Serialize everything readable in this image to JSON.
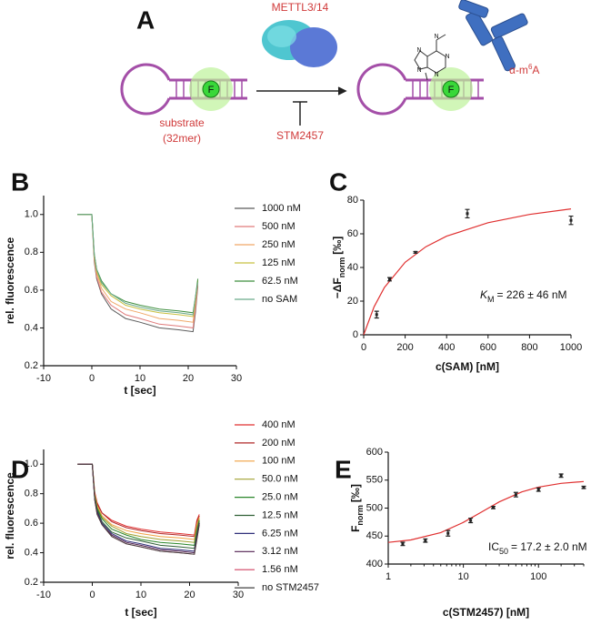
{
  "diagram": {
    "label": "A",
    "enzyme": "METTL3/14",
    "antibody": {
      "pre": "α-m",
      "sup": "6",
      "post": "A"
    },
    "substrate": [
      "substrate",
      "(32mer)"
    ],
    "inhibitor": "STM2457",
    "fluorophore": [
      "F",
      "F"
    ],
    "atoms": [
      "N",
      "N",
      "N",
      "N",
      "N"
    ]
  },
  "chart_data": [
    {
      "type": "line",
      "panel": "B",
      "xlabel": "t [sec]",
      "ylabel": "rel. fluorescence",
      "xlim": [
        -10,
        30
      ],
      "xticks": [
        -10,
        0,
        10,
        20,
        30
      ],
      "ylim": [
        0.2,
        1.1
      ],
      "yticks": [
        0.2,
        0.4,
        0.6,
        0.8,
        {
          "value": 1,
          "label": "1.0"
        }
      ],
      "x": [
        -3,
        0,
        0.5,
        1,
        2,
        4,
        7,
        10,
        14,
        18,
        21,
        21.5,
        22
      ],
      "series": [
        {
          "name": "1000 nM",
          "color": "#5a5a5a",
          "values": [
            1,
            1,
            0.75,
            0.66,
            0.58,
            0.5,
            0.45,
            0.43,
            0.4,
            0.39,
            0.38,
            0.48,
            0.62
          ]
        },
        {
          "name": "500 nM",
          "color": "#e07a7a",
          "values": [
            1,
            1,
            0.76,
            0.67,
            0.59,
            0.52,
            0.47,
            0.45,
            0.42,
            0.41,
            0.4,
            0.5,
            0.63
          ]
        },
        {
          "name": "250 nM",
          "color": "#f0a868",
          "values": [
            1,
            1,
            0.77,
            0.69,
            0.61,
            0.54,
            0.5,
            0.48,
            0.45,
            0.44,
            0.43,
            0.53,
            0.64
          ]
        },
        {
          "name": "125 nM",
          "color": "#c8c040",
          "values": [
            1,
            1,
            0.78,
            0.7,
            0.63,
            0.57,
            0.52,
            0.5,
            0.48,
            0.47,
            0.46,
            0.55,
            0.65
          ]
        },
        {
          "name": "62.5 nM",
          "color": "#3f8f3f",
          "values": [
            1,
            1,
            0.79,
            0.71,
            0.65,
            0.58,
            0.54,
            0.52,
            0.5,
            0.49,
            0.48,
            0.56,
            0.66
          ]
        },
        {
          "name": "no SAM",
          "color": "#6aaa8a",
          "values": [
            1,
            1,
            0.79,
            0.71,
            0.64,
            0.58,
            0.53,
            0.51,
            0.49,
            0.48,
            0.47,
            0.56,
            0.64
          ]
        }
      ]
    },
    {
      "type": "scatter",
      "panel": "C",
      "xlabel": "c(SAM) [nM]",
      "ylabel": {
        "pre": "−ΔF",
        "sub": "norm",
        "post": "[‰]"
      },
      "annotation": {
        "pre": "K",
        "sub": "M",
        "post": "= 226 ± 46 nM"
      },
      "xlim": [
        0,
        1000
      ],
      "xticks": [
        0,
        200,
        400,
        600,
        800,
        1000
      ],
      "ylim": [
        0,
        80
      ],
      "yticks": [
        0,
        20,
        40,
        60,
        80
      ],
      "x": [
        62.5,
        125,
        250,
        500,
        1000
      ],
      "values": [
        12,
        33,
        49,
        72,
        68
      ],
      "errors": [
        2,
        1,
        0.5,
        2.5,
        2.5
      ],
      "color": "#222222",
      "fit": {
        "color": "#e03030",
        "x": [
          0,
          50,
          100,
          200,
          300,
          400,
          600,
          800,
          1000
        ],
        "values": [
          0,
          16.6,
          28.1,
          43.1,
          52.3,
          58.6,
          66.6,
          71.5,
          74.8
        ]
      }
    },
    {
      "type": "line",
      "panel": "D",
      "xlabel": "t [sec]",
      "ylabel": "rel. fluorescence",
      "xlim": [
        -10,
        30
      ],
      "xticks": [
        -10,
        0,
        10,
        20,
        30
      ],
      "ylim": [
        0.2,
        1.1
      ],
      "yticks": [
        0.2,
        0.4,
        0.6,
        0.8,
        {
          "value": 1,
          "label": "1.0"
        }
      ],
      "x": [
        -3,
        0,
        0.5,
        1,
        2,
        4,
        7,
        10,
        14,
        18,
        21,
        21.5,
        22
      ],
      "series": [
        {
          "name": "400 nM",
          "color": "#e03030",
          "values": [
            1,
            1,
            0.81,
            0.74,
            0.67,
            0.62,
            0.58,
            0.56,
            0.54,
            0.53,
            0.52,
            0.62,
            0.66
          ]
        },
        {
          "name": "200 nM",
          "color": "#b02828",
          "values": [
            1,
            1,
            0.8,
            0.73,
            0.67,
            0.61,
            0.57,
            0.55,
            0.53,
            0.52,
            0.51,
            0.61,
            0.65
          ]
        },
        {
          "name": "100 nM",
          "color": "#f0a040",
          "values": [
            1,
            1,
            0.8,
            0.72,
            0.65,
            0.59,
            0.55,
            0.53,
            0.51,
            0.5,
            0.49,
            0.59,
            0.64
          ]
        },
        {
          "name": "50.0 nM",
          "color": "#a0a030",
          "values": [
            1,
            1,
            0.79,
            0.71,
            0.64,
            0.58,
            0.53,
            0.51,
            0.49,
            0.48,
            0.47,
            0.57,
            0.63
          ]
        },
        {
          "name": "25.0 nM",
          "color": "#2a862a",
          "values": [
            1,
            1,
            0.78,
            0.7,
            0.63,
            0.56,
            0.52,
            0.49,
            0.47,
            0.46,
            0.45,
            0.55,
            0.62
          ]
        },
        {
          "name": "12.5 nM",
          "color": "#2f5f35",
          "values": [
            1,
            1,
            0.77,
            0.69,
            0.61,
            0.54,
            0.5,
            0.48,
            0.45,
            0.44,
            0.43,
            0.53,
            0.61
          ]
        },
        {
          "name": "6.25 nM",
          "color": "#30307a",
          "values": [
            1,
            1,
            0.76,
            0.68,
            0.6,
            0.53,
            0.48,
            0.46,
            0.43,
            0.42,
            0.41,
            0.51,
            0.6
          ]
        },
        {
          "name": "3.12 nM",
          "color": "#502050",
          "values": [
            1,
            1,
            0.76,
            0.67,
            0.59,
            0.52,
            0.47,
            0.45,
            0.42,
            0.41,
            0.4,
            0.5,
            0.6
          ]
        },
        {
          "name": "1.56 nM",
          "color": "#d04060",
          "values": [
            1,
            1,
            0.76,
            0.66,
            0.59,
            0.51,
            0.46,
            0.44,
            0.41,
            0.4,
            0.39,
            0.49,
            0.59
          ]
        },
        {
          "name": "no STM2457",
          "color": "#404040",
          "values": [
            1,
            1,
            0.76,
            0.66,
            0.59,
            0.51,
            0.46,
            0.44,
            0.41,
            0.4,
            0.39,
            0.49,
            0.59
          ]
        }
      ]
    },
    {
      "type": "scatter",
      "panel": "E",
      "xlabel": "c(STM2457) [nM]",
      "ylabel": {
        "pre": "F",
        "sub": "norm",
        "post": "[‰]"
      },
      "annotation": {
        "pre": "IC",
        "sub": "50",
        "post": "= 17.2 ± 2.0 nM"
      },
      "xscale": "log",
      "xlim": [
        1,
        400
      ],
      "xticks": [
        1,
        10,
        100
      ],
      "ylim": [
        400,
        600
      ],
      "yticks": [
        400,
        450,
        500,
        550,
        600
      ],
      "x": [
        1.56,
        3.12,
        6.25,
        12.5,
        25,
        50,
        100,
        200,
        400
      ],
      "values": [
        436,
        442,
        455,
        478,
        501,
        524,
        533,
        558,
        537
      ],
      "errors": [
        3,
        3,
        5,
        4,
        2,
        4,
        3,
        3,
        2
      ],
      "color": "#222222",
      "fit": {
        "color": "#e03030",
        "x": [
          1,
          2,
          5,
          10,
          17.2,
          30,
          60,
          100,
          200,
          400
        ],
        "values": [
          438.7,
          443.1,
          456.3,
          474.4,
          492.5,
          511,
          529,
          537.6,
          544.3,
          547.4
        ]
      }
    }
  ]
}
